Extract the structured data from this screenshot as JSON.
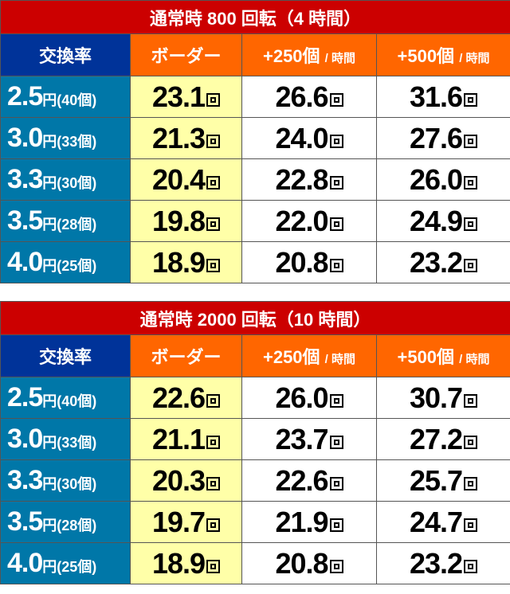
{
  "tables": [
    {
      "title": "通常時 800 回転（4 時間）",
      "headers": {
        "rate": "交換率",
        "border": "ボーダー",
        "plus250": "+250個",
        "plus500": "+500個",
        "per_hour": "/ 時間"
      },
      "unit": "回",
      "rows": [
        {
          "rate": "2.5",
          "rate_unit": "円(40個)",
          "border": "23.1",
          "p250": "26.6",
          "p500": "31.6"
        },
        {
          "rate": "3.0",
          "rate_unit": "円(33個)",
          "border": "21.3",
          "p250": "24.0",
          "p500": "27.6"
        },
        {
          "rate": "3.3",
          "rate_unit": "円(30個)",
          "border": "20.4",
          "p250": "22.8",
          "p500": "26.0"
        },
        {
          "rate": "3.5",
          "rate_unit": "円(28個)",
          "border": "19.8",
          "p250": "22.0",
          "p500": "24.9"
        },
        {
          "rate": "4.0",
          "rate_unit": "円(25個)",
          "border": "18.9",
          "p250": "20.8",
          "p500": "23.2"
        }
      ]
    },
    {
      "title": "通常時 2000 回転（10 時間）",
      "headers": {
        "rate": "交換率",
        "border": "ボーダー",
        "plus250": "+250個",
        "plus500": "+500個",
        "per_hour": "/ 時間"
      },
      "unit": "回",
      "rows": [
        {
          "rate": "2.5",
          "rate_unit": "円(40個)",
          "border": "22.6",
          "p250": "26.0",
          "p500": "30.7"
        },
        {
          "rate": "3.0",
          "rate_unit": "円(33個)",
          "border": "21.1",
          "p250": "23.7",
          "p500": "27.2"
        },
        {
          "rate": "3.3",
          "rate_unit": "円(30個)",
          "border": "20.3",
          "p250": "22.6",
          "p500": "25.7"
        },
        {
          "rate": "3.5",
          "rate_unit": "円(28個)",
          "border": "19.7",
          "p250": "21.9",
          "p500": "24.7"
        },
        {
          "rate": "4.0",
          "rate_unit": "円(25個)",
          "border": "18.9",
          "p250": "20.8",
          "p500": "23.2"
        }
      ]
    }
  ]
}
